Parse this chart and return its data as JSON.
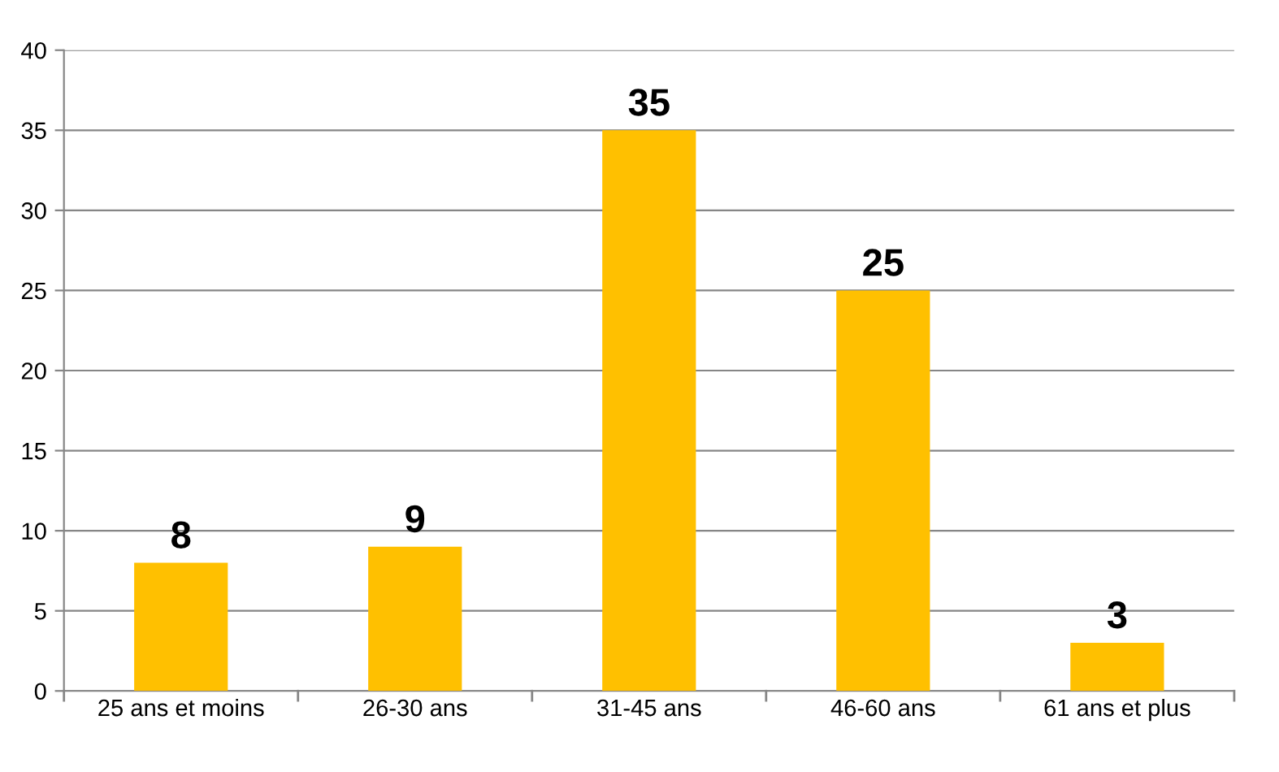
{
  "chart_data": {
    "type": "bar",
    "categories": [
      "25 ans et moins",
      "26-30 ans",
      "31-45 ans",
      "46-60 ans",
      "61 ans et plus"
    ],
    "values": [
      8,
      9,
      35,
      25,
      3
    ],
    "color": "#ffc000",
    "ylim": [
      0,
      40
    ],
    "yticks": [
      0,
      5,
      10,
      15,
      20,
      25,
      30,
      35,
      40
    ],
    "grid": "y",
    "data_labels": true,
    "legend": false
  }
}
